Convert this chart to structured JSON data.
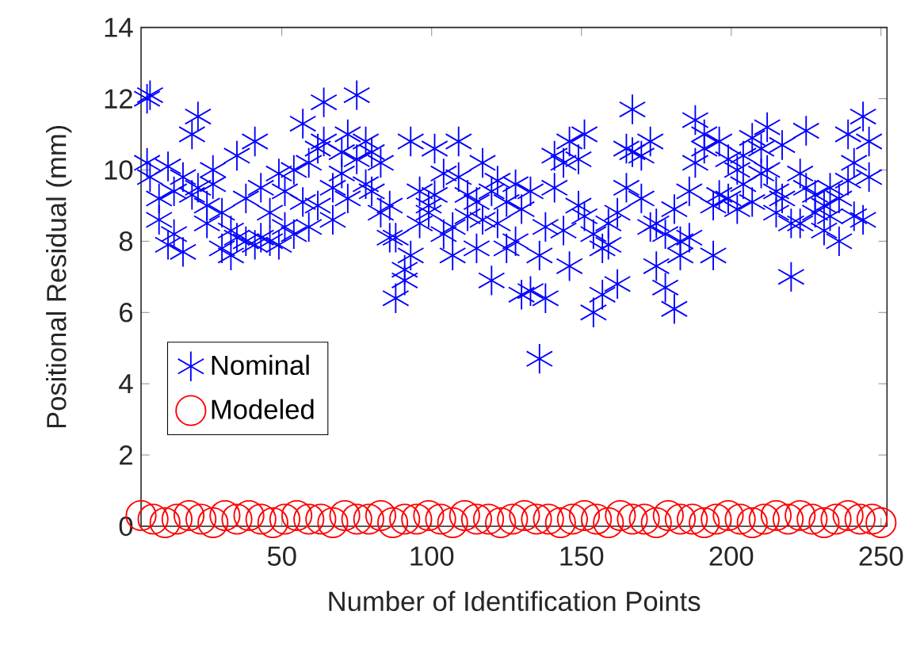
{
  "chart_data": {
    "type": "scatter",
    "xlabel": "Number of Identification Points",
    "ylabel": "Positional Residual (mm)",
    "xlim": [
      3,
      252
    ],
    "ylim": [
      0,
      14
    ],
    "xticks": [
      50,
      100,
      150,
      200,
      250
    ],
    "yticks": [
      0,
      2,
      4,
      6,
      8,
      10,
      12,
      14
    ],
    "grid": false,
    "legend": "left",
    "series": [
      {
        "name": "Nominal",
        "color": "#0000ff",
        "marker": "cross",
        "x": [
          5,
          5,
          6,
          6,
          9,
          9,
          12,
          12,
          14,
          14,
          17,
          17,
          20,
          20,
          22,
          22,
          25,
          25,
          27,
          27,
          30,
          30,
          33,
          33,
          35,
          35,
          38,
          38,
          41,
          41,
          43,
          43,
          46,
          46,
          49,
          49,
          51,
          51,
          54,
          54,
          57,
          57,
          59,
          59,
          62,
          62,
          64,
          64,
          67,
          67,
          70,
          70,
          72,
          72,
          75,
          75,
          78,
          78,
          80,
          80,
          83,
          83,
          86,
          86,
          88,
          88,
          91,
          91,
          93,
          93,
          96,
          96,
          99,
          99,
          101,
          101,
          104,
          104,
          107,
          107,
          109,
          109,
          112,
          112,
          115,
          115,
          117,
          117,
          120,
          120,
          122,
          122,
          125,
          125,
          128,
          128,
          130,
          130,
          133,
          133,
          136,
          136,
          138,
          138,
          141,
          141,
          144,
          144,
          146,
          146,
          149,
          149,
          151,
          151,
          154,
          154,
          157,
          157,
          159,
          159,
          162,
          162,
          165,
          165,
          167,
          167,
          170,
          170,
          173,
          173,
          175,
          175,
          178,
          178,
          181,
          181,
          183,
          183,
          186,
          186,
          188,
          188,
          191,
          191,
          194,
          194,
          196,
          196,
          199,
          199,
          202,
          202,
          204,
          204,
          207,
          207,
          210,
          210,
          212,
          212,
          215,
          215,
          217,
          217,
          220,
          220,
          223,
          223,
          225,
          225,
          228,
          228,
          231,
          231,
          233,
          233,
          236,
          236,
          239,
          239,
          241,
          241,
          244,
          244,
          246,
          246
        ],
        "values": [
          12.0,
          10.2,
          12.1,
          9.8,
          8.6,
          9.2,
          7.9,
          10.1,
          9.4,
          8.2,
          9.8,
          7.7,
          11.0,
          9.3,
          11.5,
          9.5,
          9.0,
          8.5,
          9.6,
          10.0,
          7.8,
          8.8,
          7.6,
          8.3,
          10.4,
          8.1,
          9.2,
          8.0,
          10.8,
          7.9,
          8.1,
          9.5,
          8.0,
          8.8,
          7.9,
          9.9,
          8.4,
          9.4,
          10.0,
          8.2,
          11.3,
          9.1,
          10.2,
          8.4,
          10.6,
          9.0,
          11.9,
          10.8,
          9.5,
          8.6,
          10.5,
          9.9,
          11.0,
          9.2,
          12.1,
          10.3,
          10.8,
          9.6,
          10.5,
          9.4,
          10.2,
          8.8,
          9.0,
          8.1,
          8.1,
          6.4,
          7.2,
          6.9,
          7.6,
          10.8,
          9.4,
          8.5,
          9.0,
          8.8,
          9.3,
          10.6,
          8.2,
          9.9,
          7.6,
          8.4,
          9.8,
          10.8,
          8.7,
          9.3,
          9.1,
          7.8,
          10.2,
          8.6,
          9.4,
          6.9,
          8.5,
          9.7,
          7.8,
          9.1,
          9.6,
          8.0,
          6.5,
          8.9,
          6.6,
          9.4,
          4.7,
          7.6,
          6.4,
          8.4,
          9.5,
          10.4,
          10.2,
          8.3,
          10.8,
          7.3,
          10.3,
          9.0,
          11.0,
          8.7,
          8.2,
          6.0,
          6.5,
          7.8,
          7.9,
          8.5,
          8.8,
          6.8,
          10.6,
          9.5,
          11.7,
          10.5,
          10.4,
          9.2,
          10.8,
          8.4,
          8.5,
          7.3,
          8.2,
          6.7,
          8.9,
          6.1,
          8.0,
          7.6,
          9.4,
          8.1,
          11.4,
          10.2,
          11.0,
          10.6,
          9.0,
          7.6,
          10.8,
          9.3,
          9.2,
          10.3,
          10.0,
          8.9,
          10.4,
          9.6,
          10.9,
          9.1,
          10.6,
          9.9,
          11.2,
          10.0,
          8.8,
          9.4,
          9.2,
          10.7,
          7.0,
          8.5,
          8.5,
          9.9,
          11.1,
          9.5,
          9.3,
          8.8,
          9.0,
          8.3,
          9.5,
          8.7,
          8.0,
          9.2,
          11.0,
          9.7,
          8.7,
          10.2,
          11.5,
          8.6,
          10.8,
          9.8
        ]
      },
      {
        "name": "Modeled",
        "color": "#ff0000",
        "marker": "circle",
        "x": [
          3,
          7,
          11,
          15,
          19,
          23,
          27,
          31,
          35,
          39,
          43,
          47,
          51,
          55,
          59,
          63,
          67,
          71,
          75,
          79,
          83,
          87,
          91,
          95,
          99,
          103,
          107,
          111,
          115,
          119,
          123,
          127,
          131,
          135,
          139,
          143,
          147,
          151,
          155,
          159,
          163,
          167,
          171,
          175,
          179,
          183,
          187,
          191,
          195,
          199,
          203,
          207,
          211,
          215,
          219,
          223,
          227,
          231,
          235,
          239,
          243,
          247,
          250
        ],
        "values": [
          0.3,
          0.2,
          0.1,
          0.2,
          0.3,
          0.2,
          0.1,
          0.3,
          0.2,
          0.3,
          0.2,
          0.1,
          0.2,
          0.3,
          0.2,
          0.2,
          0.1,
          0.3,
          0.2,
          0.2,
          0.3,
          0.1,
          0.2,
          0.2,
          0.3,
          0.2,
          0.1,
          0.3,
          0.2,
          0.2,
          0.1,
          0.2,
          0.3,
          0.2,
          0.2,
          0.1,
          0.2,
          0.3,
          0.2,
          0.1,
          0.3,
          0.2,
          0.2,
          0.1,
          0.3,
          0.2,
          0.2,
          0.1,
          0.2,
          0.3,
          0.2,
          0.1,
          0.2,
          0.3,
          0.2,
          0.3,
          0.2,
          0.1,
          0.2,
          0.3,
          0.2,
          0.2,
          0.1
        ]
      }
    ]
  }
}
